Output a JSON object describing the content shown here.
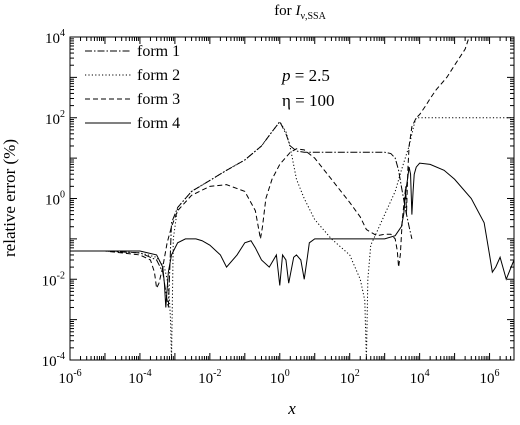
{
  "chart_data": {
    "type": "line",
    "title": {
      "prefix": "for ",
      "symbol": "I",
      "subscript": "ν,SSA"
    },
    "xlabel": "x",
    "ylabel": "relative error (%)",
    "xscale": "log",
    "yscale": "log",
    "xlim": [
      1e-06,
      5000000.0
    ],
    "ylim": [
      0.0001,
      10000.0
    ],
    "x_ticks": [
      {
        "base": "10",
        "exp": "-6",
        "value": 1e-06
      },
      {
        "base": "10",
        "exp": "-4",
        "value": 0.0001
      },
      {
        "base": "10",
        "exp": "-2",
        "value": 0.01
      },
      {
        "base": "10",
        "exp": "0",
        "value": 1
      },
      {
        "base": "10",
        "exp": "2",
        "value": 100.0
      },
      {
        "base": "10",
        "exp": "4",
        "value": 10000.0
      },
      {
        "base": "10",
        "exp": "6",
        "value": 1000000.0
      }
    ],
    "y_ticks": [
      {
        "base": "10",
        "exp": "-4",
        "value": 0.0001
      },
      {
        "base": "10",
        "exp": "-2",
        "value": 0.01
      },
      {
        "base": "10",
        "exp": "0",
        "value": 1
      },
      {
        "base": "10",
        "exp": "2",
        "value": 100.0
      },
      {
        "base": "10",
        "exp": "4",
        "value": 10000.0
      }
    ],
    "annotations": [
      {
        "var": "p",
        "rest": " = 2.5"
      },
      {
        "var": "",
        "rest": "η = 100"
      }
    ],
    "legend_position": "top-left",
    "grid": false,
    "series": [
      {
        "name": "form 1",
        "dash": "dashdot",
        "x": [
          1e-06,
          1e-05,
          0.0001,
          0.0003,
          0.00045,
          0.00053,
          0.0006,
          0.00065,
          0.0008,
          0.0012,
          0.003,
          0.01,
          0.03,
          0.1,
          0.3,
          0.6,
          1,
          1.5,
          2,
          3,
          5,
          10,
          30,
          100,
          300,
          1000,
          1500,
          2000,
          2500,
          3000,
          4000,
          5000,
          6000
        ],
        "y": [
          0.05,
          0.05,
          0.045,
          0.03,
          0.015,
          0.006,
          0.003,
          0.002,
          0.25,
          0.6,
          1.5,
          2.8,
          5,
          9,
          20,
          45,
          80,
          40,
          20,
          15,
          14,
          14,
          14,
          14,
          14,
          14,
          13,
          10,
          5,
          2,
          0.5,
          0.2,
          0.1
        ]
      },
      {
        "name": "form 2",
        "dash": "dotted",
        "x": [
          1e-06,
          1e-05,
          0.0001,
          0.0003,
          0.0005,
          0.0006,
          0.0007,
          0.00075,
          0.0008,
          0.0009,
          0.0012,
          0.003,
          0.01,
          0.03,
          0.1,
          0.3,
          0.6,
          1,
          1.5,
          2,
          3,
          5,
          10,
          30,
          100,
          200,
          270,
          300,
          330,
          400,
          600,
          1000,
          2000,
          3000,
          5000,
          7000,
          8000,
          8500,
          100000.0,
          5000000.0
        ],
        "y": [
          0.05,
          0.05,
          0.045,
          0.035,
          0.02,
          0.01,
          0.003,
          0.001,
          0.0001,
          0.1,
          0.6,
          1.5,
          2.8,
          5,
          9,
          20,
          45,
          80,
          45,
          18,
          3,
          1,
          0.3,
          0.1,
          0.04,
          0.01,
          0.003,
          0.0001,
          0.01,
          0.07,
          0.15,
          0.4,
          1.5,
          5,
          20,
          70,
          100,
          100,
          100,
          100
        ]
      },
      {
        "name": "form 3",
        "dash": "dashed",
        "x": [
          1e-06,
          1e-05,
          0.0001,
          0.0002,
          0.00026,
          0.0003,
          0.00035,
          0.00045,
          0.0006,
          0.0008,
          0.0012,
          0.003,
          0.01,
          0.03,
          0.1,
          0.2,
          0.28,
          0.32,
          0.4,
          0.6,
          1,
          2,
          3,
          5,
          10,
          30,
          100,
          200,
          300,
          600,
          1000,
          1500,
          2000,
          2300,
          2500,
          2800,
          3200,
          4000,
          4200,
          4600,
          5000,
          6000,
          8000,
          10000.0,
          15000.0,
          20000.0,
          30000.0,
          60000.0,
          100000.0,
          200000.0,
          250000.0
        ],
        "y": [
          0.05,
          0.05,
          0.04,
          0.03,
          0.015,
          0.006,
          0.008,
          0.02,
          0.08,
          0.2,
          0.5,
          1.2,
          2,
          2.2,
          1.5,
          0.5,
          0.1,
          0.2,
          1,
          3,
          7,
          14,
          17,
          16,
          10,
          3,
          0.8,
          0.35,
          0.17,
          0.12,
          0.13,
          0.13,
          0.1,
          0.05,
          0.02,
          0.04,
          0.3,
          2,
          0.4,
          5,
          20,
          60,
          100,
          120,
          200,
          300,
          500,
          1000,
          2000,
          5000,
          9000
        ]
      },
      {
        "name": "form 4",
        "dash": "solid",
        "x": [
          1e-06,
          1e-05,
          0.0001,
          0.0003,
          0.00045,
          0.0005,
          0.00055,
          0.00065,
          0.0008,
          0.0012,
          0.002,
          0.004,
          0.006,
          0.01,
          0.02,
          0.03,
          0.06,
          0.1,
          0.15,
          0.2,
          0.3,
          0.5,
          0.8,
          1,
          1.2,
          1.5,
          1.8,
          2.5,
          3,
          4,
          5,
          6,
          7,
          10,
          30,
          100,
          300,
          1000,
          2000,
          3000,
          3500,
          4000,
          4500,
          5000,
          5500,
          6000,
          6500,
          7000,
          8000,
          10000.0,
          20000.0,
          50000.0,
          100000.0,
          300000.0,
          700000.0,
          1000000.0,
          1200000.0,
          1500000.0,
          2000000.0,
          3000000.0,
          5000000.0
        ],
        "y": [
          0.05,
          0.05,
          0.05,
          0.04,
          0.02,
          0.008,
          0.002,
          0.015,
          0.04,
          0.08,
          0.1,
          0.1,
          0.09,
          0.07,
          0.04,
          0.02,
          0.04,
          0.08,
          0.09,
          0.06,
          0.03,
          0.02,
          0.04,
          0.007,
          0.04,
          0.03,
          0.008,
          0.035,
          0.04,
          0.03,
          0.01,
          0.03,
          0.08,
          0.1,
          0.1,
          0.1,
          0.1,
          0.1,
          0.12,
          0.2,
          0.4,
          1.5,
          3,
          6,
          4,
          0.4,
          1.5,
          4,
          6,
          7.5,
          7,
          5,
          3,
          1,
          0.25,
          0.04,
          0.015,
          0.02,
          0.035,
          0.01,
          0.03
        ]
      }
    ]
  }
}
